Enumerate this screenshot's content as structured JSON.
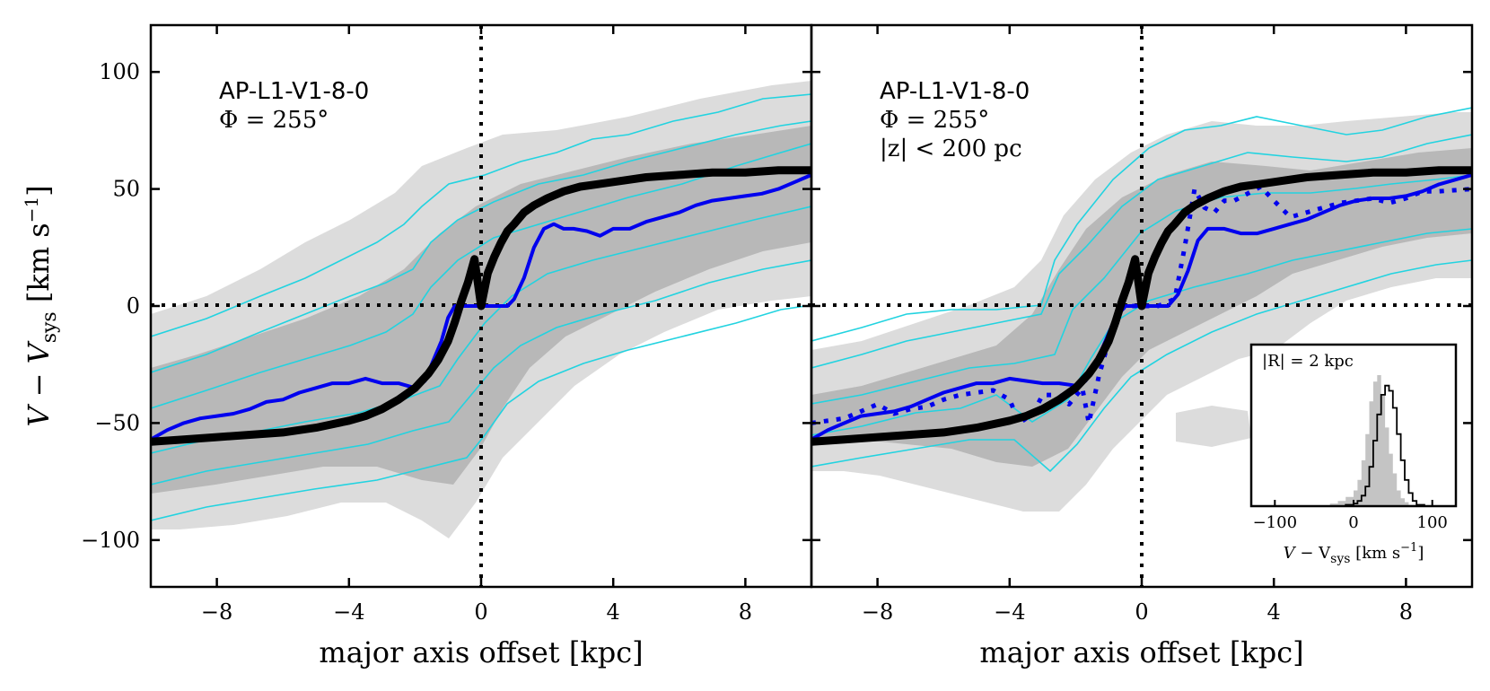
{
  "chart_data": [
    {
      "type": "line",
      "panel": "left",
      "xlabel": "major axis offset [kpc]",
      "ylabel": "V − V_sys [km s⁻¹]",
      "xlim": [
        -10,
        10
      ],
      "ylim": [
        -120,
        120
      ],
      "xticks": [
        -8,
        -4,
        0,
        4,
        8
      ],
      "xtick_labels": [
        "−8",
        "−4",
        "0",
        "4",
        "8"
      ],
      "yticks": [
        -100,
        -50,
        0,
        50,
        100
      ],
      "ytick_labels": [
        "−100",
        "−50",
        "0",
        "50",
        "100"
      ],
      "annotations": [
        "AP-L1-V1-8-0",
        "Φ = 255°"
      ],
      "series": [
        {
          "style": "blue-solid",
          "x": [
            -10,
            -9.5,
            -9,
            -8.5,
            -8,
            -7.5,
            -7,
            -6.5,
            -6,
            -5.5,
            -5,
            -4.5,
            -4,
            -3.5,
            -3,
            -2.5,
            -2,
            -1.7,
            -1.5,
            -1.2,
            -1,
            -0.8,
            -0.5,
            0,
            0.5,
            0.8,
            1.0,
            1.3,
            1.6,
            1.9,
            2.2,
            2.5,
            2.8,
            3.2,
            3.6,
            4,
            4.5,
            5,
            5.5,
            6,
            6.5,
            7,
            7.5,
            8,
            8.5,
            9,
            9.5,
            10
          ],
          "y": [
            -57,
            -53,
            -50,
            -48,
            -47,
            -46,
            -44,
            -41,
            -40,
            -37,
            -35,
            -33,
            -33,
            -31,
            -33,
            -33,
            -35,
            -32,
            -25,
            -15,
            -5,
            0,
            0,
            0,
            0,
            0,
            3,
            12,
            25,
            33,
            35,
            33,
            33,
            32,
            30,
            33,
            33,
            36,
            38,
            40,
            43,
            45,
            46,
            47,
            48,
            50,
            53,
            56
          ]
        },
        {
          "style": "black-thick",
          "x": [
            -10,
            -9,
            -8,
            -7,
            -6,
            -5,
            -4,
            -3.5,
            -3,
            -2.5,
            -2,
            -1.6,
            -1.3,
            -1,
            -0.8,
            -0.6,
            -0.4,
            -0.2,
            0,
            0.2,
            0.4,
            0.6,
            0.8,
            1,
            1.3,
            1.6,
            2,
            2.5,
            3,
            3.5,
            4,
            5,
            6,
            7,
            8,
            9,
            10
          ],
          "y": [
            -58,
            -57,
            -56,
            -55,
            -54,
            -52,
            -49,
            -47,
            -44,
            -40,
            -35,
            -29,
            -23,
            -15,
            -7,
            2,
            10,
            20,
            0,
            14,
            21,
            27,
            32,
            35,
            40,
            43,
            46,
            49,
            51,
            52,
            53,
            55,
            56,
            57,
            57,
            58,
            58
          ]
        }
      ]
    },
    {
      "type": "line",
      "panel": "right",
      "xlabel": "major axis offset [kpc]",
      "xlim": [
        -10,
        10
      ],
      "ylim": [
        -120,
        120
      ],
      "xticks": [
        -8,
        -4,
        0,
        4,
        8
      ],
      "xtick_labels": [
        "−8",
        "−4",
        "0",
        "4",
        "8"
      ],
      "annotations": [
        "AP-L1-V1-8-0",
        "Φ = 255°",
        "|z| < 200 pc"
      ],
      "series": [
        {
          "style": "blue-solid",
          "x": [
            -10,
            -9.5,
            -9,
            -8.5,
            -8,
            -7.5,
            -7,
            -6.5,
            -6,
            -5.5,
            -5,
            -4.5,
            -4,
            -3.5,
            -3,
            -2.5,
            -2,
            -1.7,
            -1.4,
            -1.1,
            -0.8,
            -0.5,
            0,
            0.5,
            0.8,
            1.1,
            1.4,
            1.7,
            2,
            2.5,
            3,
            3.5,
            4,
            4.5,
            5,
            5.5,
            6,
            6.5,
            7,
            7.5,
            8,
            8.5,
            9,
            9.5,
            10
          ],
          "y": [
            -57,
            -53,
            -50,
            -47,
            -46,
            -45,
            -43,
            -40,
            -37,
            -35,
            -33,
            -33,
            -31,
            -32,
            -33,
            -33,
            -34,
            -32,
            -25,
            -15,
            -5,
            0,
            0,
            0,
            0,
            5,
            15,
            28,
            33,
            33,
            31,
            31,
            33,
            35,
            37,
            40,
            43,
            45,
            46,
            46,
            47,
            49,
            52,
            54,
            56
          ]
        },
        {
          "style": "blue-dotted",
          "x": [
            -10,
            -9,
            -8.5,
            -8,
            -7.5,
            -7,
            -6.5,
            -6,
            -5.5,
            -5,
            -4.5,
            -4,
            -3.7,
            -3.3,
            -3,
            -2.5,
            -2.2,
            -1.8,
            -1.6,
            -1.3,
            -1,
            -0.7,
            -0.5,
            0,
            0.5,
            1.0,
            1.3,
            1.6,
            1.9,
            2.2,
            2.5,
            2.8,
            3.2,
            3.6,
            4,
            4.5,
            5,
            5.5,
            6,
            7,
            7.5,
            8,
            8.5,
            9,
            10
          ],
          "y": [
            -50,
            -48,
            -45,
            -42,
            -46,
            -44,
            -43,
            -40,
            -38,
            -37,
            -36,
            -40,
            -50,
            -46,
            -38,
            -38,
            -42,
            -35,
            -50,
            -30,
            -15,
            -3,
            0,
            0,
            0,
            3,
            25,
            50,
            42,
            40,
            45,
            45,
            48,
            51,
            45,
            38,
            40,
            42,
            44,
            46,
            44,
            46,
            49,
            49,
            50
          ]
        },
        {
          "style": "black-thick",
          "x": [
            -10,
            -9,
            -8,
            -7,
            -6,
            -5,
            -4,
            -3.5,
            -3,
            -2.5,
            -2,
            -1.6,
            -1.3,
            -1,
            -0.8,
            -0.6,
            -0.4,
            -0.2,
            0,
            0.2,
            0.4,
            0.6,
            0.8,
            1,
            1.3,
            1.6,
            2,
            2.5,
            3,
            3.5,
            4,
            5,
            6,
            7,
            8,
            9,
            10
          ],
          "y": [
            -58,
            -57,
            -56,
            -55,
            -54,
            -52,
            -49,
            -47,
            -44,
            -40,
            -35,
            -29,
            -23,
            -15,
            -7,
            2,
            10,
            20,
            0,
            14,
            21,
            27,
            32,
            35,
            40,
            43,
            46,
            49,
            51,
            52,
            53,
            55,
            56,
            57,
            57,
            58,
            58
          ]
        }
      ]
    },
    {
      "type": "area",
      "panel": "inset",
      "title": "|R| = 2 kpc",
      "xlabel": "V − V_sys [km s⁻¹]",
      "xlim": [
        -130,
        130
      ],
      "xticks": [
        -100,
        0,
        100
      ],
      "xtick_labels": [
        "−100",
        "0",
        "100"
      ],
      "series": [
        {
          "style": "grey-filled",
          "x": [
            -40,
            -30,
            -20,
            -10,
            0,
            5,
            10,
            15,
            20,
            25,
            30,
            35,
            40,
            45,
            50,
            55,
            60,
            65,
            70,
            80
          ],
          "y": [
            0,
            0.02,
            0.04,
            0.07,
            0.12,
            0.2,
            0.35,
            0.55,
            0.8,
            0.95,
            1.0,
            0.85,
            0.6,
            0.4,
            0.25,
            0.12,
            0.06,
            0.03,
            0.01,
            0
          ]
        },
        {
          "style": "black-step",
          "x": [
            -20,
            -10,
            0,
            5,
            10,
            15,
            20,
            25,
            30,
            35,
            40,
            45,
            50,
            55,
            60,
            65,
            70,
            75,
            80,
            90
          ],
          "y": [
            0,
            0.01,
            0.02,
            0.04,
            0.08,
            0.15,
            0.3,
            0.5,
            0.7,
            0.85,
            0.92,
            0.88,
            0.75,
            0.55,
            0.35,
            0.2,
            0.1,
            0.04,
            0.01,
            0
          ]
        }
      ]
    }
  ],
  "y_axis": {
    "label_v": "V",
    "label_minus": " − ",
    "label_vs": "V",
    "label_sub": "sys",
    "label_unit": " [km s",
    "label_exp": "−1",
    "label_close": "]"
  },
  "x_axis_label": "major axis offset [kpc]",
  "left_panel": {
    "line1": "AP-L1-V1-8-0",
    "line2": "Φ = 255°"
  },
  "right_panel": {
    "line1": "AP-L1-V1-8-0",
    "line2": "Φ = 255°",
    "line3": "|z| < 200 pc"
  },
  "inset": {
    "title": "|R| = 2 kpc",
    "xlabel_v": "V",
    "xlabel_rest": " − V",
    "xlabel_sub": "sys",
    "xlabel_unit": " [km s",
    "xlabel_exp": "−1",
    "xlabel_close": "]",
    "ticks": [
      "−100",
      "0",
      "100"
    ]
  },
  "colors": {
    "blue": "#0000ee",
    "cyan": "#22d3e0",
    "grey_light": "#d9d9d9",
    "grey_dark": "#b3b3b3",
    "black": "#000000"
  }
}
